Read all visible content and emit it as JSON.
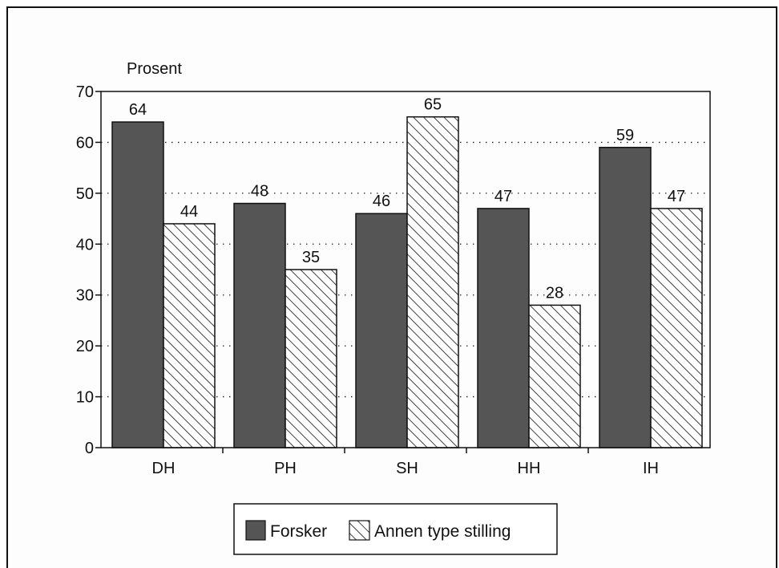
{
  "chart_data": {
    "type": "bar",
    "categories": [
      "DH",
      "PH",
      "SH",
      "HH",
      "IH"
    ],
    "series": [
      {
        "name": "Forsker",
        "values": [
          64,
          48,
          46,
          47,
          59
        ],
        "color": "#555555",
        "pattern": "solid"
      },
      {
        "name": "Annen type stilling",
        "values": [
          44,
          35,
          65,
          28,
          47
        ],
        "color": "#ffffff",
        "pattern": "diagonal-hatch"
      }
    ],
    "ylabel": "Prosent",
    "ylim": [
      0,
      70
    ],
    "yticks": [
      "0",
      "10",
      "20",
      "30",
      "40",
      "50",
      "60",
      "70"
    ],
    "grid": "dotted horizontal",
    "legend": "bottom"
  }
}
